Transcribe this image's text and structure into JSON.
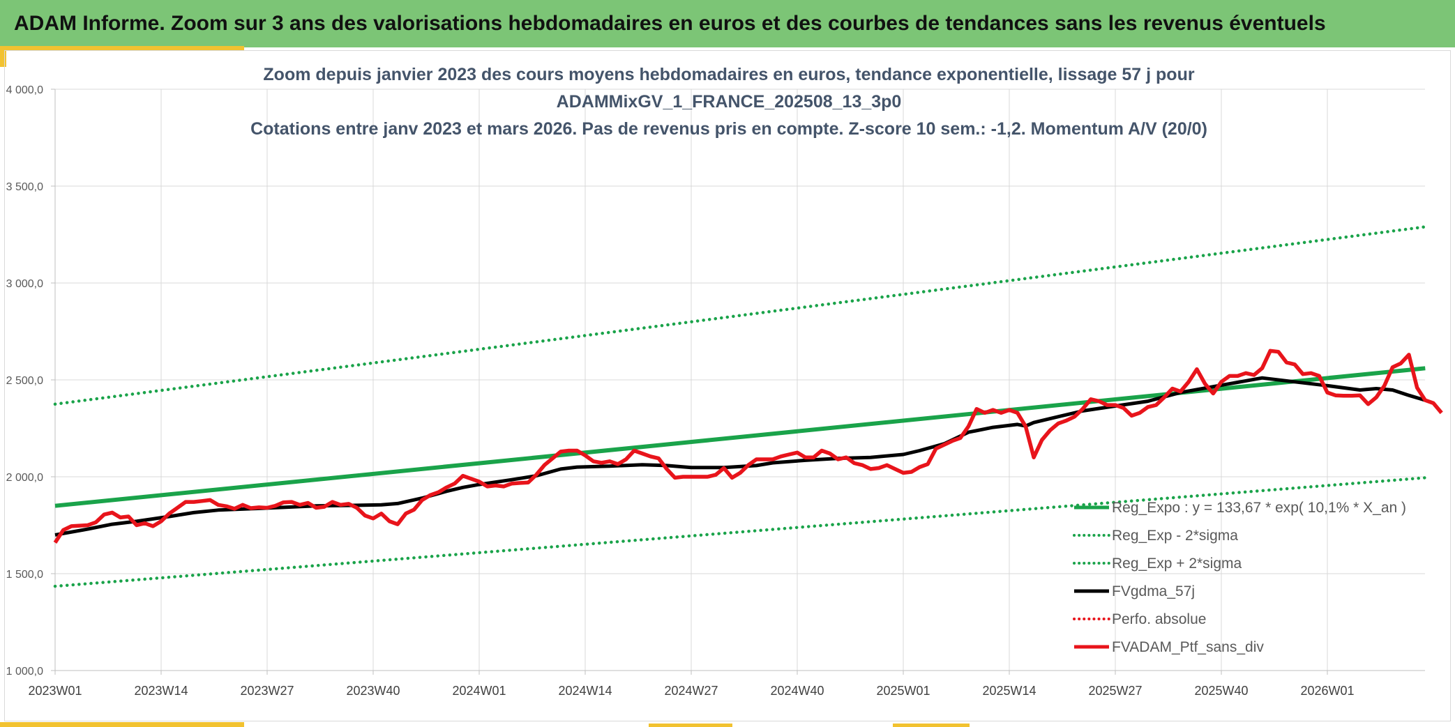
{
  "header": {
    "title": "ADAM Informe. Zoom sur 3 ans des valorisations hebdomadaires en euros et des courbes de tendances sans les revenus éventuels"
  },
  "colors": {
    "header_bg": "#7cc576",
    "trend": "#1aa34a",
    "ma": "#000000",
    "price": "#e8141b",
    "accent": "#f2c230"
  },
  "chart_data": {
    "type": "line",
    "title": [
      "Zoom depuis janvier 2023 des cours moyens hebdomadaires en euros, tendance exponentielle, lissage 57 j pour",
      "ADAMMixGV_1_FRANCE_202508_13_3p0",
      "Cotations entre janv 2023 et mars 2026. Pas de revenus pris en compte. Z-score 10 sem.: -1,2. Momentum A/V (20/0)"
    ],
    "ylim": [
      1000,
      4000
    ],
    "yticks": [
      1000,
      1500,
      2000,
      2500,
      3000,
      3500,
      4000
    ],
    "ytick_labels": [
      "1 000,0",
      "1 500,0",
      "2 000,0",
      "2 500,0",
      "3 000,0",
      "3 500,0",
      "4 000,0"
    ],
    "x_weeks": 168,
    "xticks": [
      0,
      13,
      26,
      39,
      52,
      65,
      78,
      91,
      104,
      117,
      130,
      143,
      156
    ],
    "xtick_labels": [
      "2023W01",
      "2023W14",
      "2023W27",
      "2023W40",
      "2024W01",
      "2024W14",
      "2024W27",
      "2024W40",
      "2025W01",
      "2025W14",
      "2025W27",
      "2025W40",
      "2026W01"
    ],
    "grid": true,
    "legend_position": "bottom-right",
    "series": [
      {
        "name": "Reg_Expo : y = 133,67 * exp( 10,1% *  X_an )",
        "style": "solid-green",
        "points": [
          [
            0,
            1850
          ],
          [
            168,
            2560
          ]
        ]
      },
      {
        "name": "Reg_Exp - 2*sigma",
        "style": "dotted-green",
        "points": [
          [
            0,
            1435
          ],
          [
            168,
            1995
          ]
        ]
      },
      {
        "name": "Reg_Exp + 2*sigma",
        "style": "dotted-green",
        "points": [
          [
            0,
            2375
          ],
          [
            168,
            3290
          ]
        ]
      },
      {
        "name": "FVgdma_57j",
        "style": "solid-black",
        "points": [
          [
            0,
            1700
          ],
          [
            4,
            1730
          ],
          [
            7,
            1755
          ],
          [
            10,
            1770
          ],
          [
            14,
            1795
          ],
          [
            17,
            1815
          ],
          [
            20,
            1828
          ],
          [
            24,
            1835
          ],
          [
            28,
            1842
          ],
          [
            32,
            1850
          ],
          [
            36,
            1852
          ],
          [
            40,
            1855
          ],
          [
            42,
            1862
          ],
          [
            45,
            1890
          ],
          [
            48,
            1925
          ],
          [
            50,
            1945
          ],
          [
            52,
            1960
          ],
          [
            56,
            1985
          ],
          [
            59,
            2005
          ],
          [
            62,
            2040
          ],
          [
            64,
            2050
          ],
          [
            68,
            2055
          ],
          [
            72,
            2062
          ],
          [
            75,
            2058
          ],
          [
            78,
            2048
          ],
          [
            82,
            2048
          ],
          [
            86,
            2058
          ],
          [
            88,
            2072
          ],
          [
            92,
            2085
          ],
          [
            96,
            2095
          ],
          [
            100,
            2100
          ],
          [
            104,
            2115
          ],
          [
            106,
            2135
          ],
          [
            109,
            2170
          ],
          [
            112,
            2230
          ],
          [
            115,
            2255
          ],
          [
            118,
            2270
          ],
          [
            119,
            2262
          ],
          [
            120,
            2280
          ],
          [
            122,
            2300
          ],
          [
            126,
            2340
          ],
          [
            130,
            2365
          ],
          [
            134,
            2390
          ],
          [
            138,
            2435
          ],
          [
            142,
            2465
          ],
          [
            144,
            2480
          ],
          [
            148,
            2510
          ],
          [
            152,
            2490
          ],
          [
            156,
            2470
          ],
          [
            160,
            2448
          ],
          [
            162,
            2455
          ],
          [
            164,
            2448
          ],
          [
            166,
            2420
          ],
          [
            168,
            2395
          ]
        ]
      },
      {
        "name": "Perfo. absolue",
        "style": "dotted-red",
        "points": []
      },
      {
        "name": "FVADAM_Ptf_sans_div",
        "style": "solid-red",
        "points": [
          [
            0,
            1660
          ],
          [
            1,
            1725
          ],
          [
            2,
            1745
          ],
          [
            4,
            1750
          ],
          [
            5,
            1765
          ],
          [
            6,
            1805
          ],
          [
            7,
            1815
          ],
          [
            8,
            1790
          ],
          [
            9,
            1795
          ],
          [
            10,
            1750
          ],
          [
            11,
            1760
          ],
          [
            12,
            1745
          ],
          [
            13,
            1770
          ],
          [
            14,
            1810
          ],
          [
            15,
            1840
          ],
          [
            16,
            1870
          ],
          [
            17,
            1870
          ],
          [
            18,
            1875
          ],
          [
            19,
            1880
          ],
          [
            20,
            1855
          ],
          [
            21,
            1848
          ],
          [
            22,
            1835
          ],
          [
            23,
            1855
          ],
          [
            24,
            1838
          ],
          [
            25,
            1842
          ],
          [
            26,
            1840
          ],
          [
            27,
            1850
          ],
          [
            28,
            1868
          ],
          [
            29,
            1870
          ],
          [
            30,
            1855
          ],
          [
            31,
            1865
          ],
          [
            32,
            1840
          ],
          [
            33,
            1845
          ],
          [
            34,
            1870
          ],
          [
            35,
            1855
          ],
          [
            36,
            1860
          ],
          [
            37,
            1840
          ],
          [
            38,
            1800
          ],
          [
            39,
            1785
          ],
          [
            40,
            1810
          ],
          [
            41,
            1770
          ],
          [
            42,
            1755
          ],
          [
            43,
            1810
          ],
          [
            44,
            1830
          ],
          [
            45,
            1880
          ],
          [
            46,
            1905
          ],
          [
            47,
            1920
          ],
          [
            48,
            1945
          ],
          [
            49,
            1965
          ],
          [
            50,
            2005
          ],
          [
            51,
            1990
          ],
          [
            52,
            1975
          ],
          [
            53,
            1950
          ],
          [
            54,
            1955
          ],
          [
            55,
            1950
          ],
          [
            56,
            1965
          ],
          [
            57,
            1968
          ],
          [
            58,
            1970
          ],
          [
            59,
            2010
          ],
          [
            60,
            2060
          ],
          [
            61,
            2095
          ],
          [
            62,
            2130
          ],
          [
            63,
            2135
          ],
          [
            64,
            2135
          ],
          [
            65,
            2110
          ],
          [
            66,
            2080
          ],
          [
            67,
            2072
          ],
          [
            68,
            2080
          ],
          [
            69,
            2065
          ],
          [
            70,
            2090
          ],
          [
            71,
            2135
          ],
          [
            72,
            2120
          ],
          [
            73,
            2105
          ],
          [
            74,
            2095
          ],
          [
            75,
            2040
          ],
          [
            76,
            1995
          ],
          [
            77,
            2000
          ],
          [
            78,
            2000
          ],
          [
            80,
            2000
          ],
          [
            81,
            2010
          ],
          [
            82,
            2045
          ],
          [
            83,
            1995
          ],
          [
            84,
            2020
          ],
          [
            85,
            2060
          ],
          [
            86,
            2090
          ],
          [
            87,
            2090
          ],
          [
            88,
            2090
          ],
          [
            89,
            2105
          ],
          [
            90,
            2115
          ],
          [
            91,
            2125
          ],
          [
            92,
            2100
          ],
          [
            93,
            2100
          ],
          [
            94,
            2135
          ],
          [
            95,
            2120
          ],
          [
            96,
            2090
          ],
          [
            97,
            2100
          ],
          [
            98,
            2070
          ],
          [
            99,
            2060
          ],
          [
            100,
            2040
          ],
          [
            101,
            2045
          ],
          [
            102,
            2060
          ],
          [
            103,
            2040
          ],
          [
            104,
            2020
          ],
          [
            105,
            2025
          ],
          [
            106,
            2050
          ],
          [
            107,
            2065
          ],
          [
            108,
            2145
          ],
          [
            109,
            2165
          ],
          [
            110,
            2185
          ],
          [
            111,
            2200
          ],
          [
            112,
            2260
          ],
          [
            113,
            2350
          ],
          [
            114,
            2330
          ],
          [
            115,
            2345
          ],
          [
            116,
            2330
          ],
          [
            117,
            2345
          ],
          [
            118,
            2330
          ],
          [
            119,
            2260
          ],
          [
            120,
            2100
          ],
          [
            121,
            2190
          ],
          [
            122,
            2240
          ],
          [
            123,
            2275
          ],
          [
            124,
            2290
          ],
          [
            125,
            2310
          ],
          [
            126,
            2350
          ],
          [
            127,
            2400
          ],
          [
            128,
            2390
          ],
          [
            129,
            2370
          ],
          [
            130,
            2370
          ],
          [
            131,
            2355
          ],
          [
            132,
            2315
          ],
          [
            133,
            2330
          ],
          [
            134,
            2360
          ],
          [
            135,
            2370
          ],
          [
            136,
            2410
          ],
          [
            137,
            2455
          ],
          [
            138,
            2440
          ],
          [
            139,
            2490
          ],
          [
            140,
            2555
          ],
          [
            141,
            2480
          ],
          [
            142,
            2430
          ],
          [
            143,
            2490
          ],
          [
            144,
            2520
          ],
          [
            145,
            2520
          ],
          [
            146,
            2535
          ],
          [
            147,
            2525
          ],
          [
            148,
            2560
          ],
          [
            149,
            2650
          ],
          [
            150,
            2645
          ],
          [
            151,
            2590
          ],
          [
            152,
            2580
          ],
          [
            153,
            2530
          ],
          [
            154,
            2535
          ],
          [
            155,
            2520
          ],
          [
            156,
            2435
          ],
          [
            157,
            2420
          ],
          [
            158,
            2418
          ],
          [
            159,
            2418
          ],
          [
            160,
            2420
          ],
          [
            161,
            2375
          ],
          [
            162,
            2410
          ],
          [
            163,
            2470
          ],
          [
            164,
            2565
          ],
          [
            165,
            2585
          ],
          [
            166,
            2630
          ],
          [
            167,
            2460
          ],
          [
            168,
            2395
          ],
          [
            169,
            2380
          ],
          [
            170,
            2330
          ]
        ]
      }
    ]
  }
}
